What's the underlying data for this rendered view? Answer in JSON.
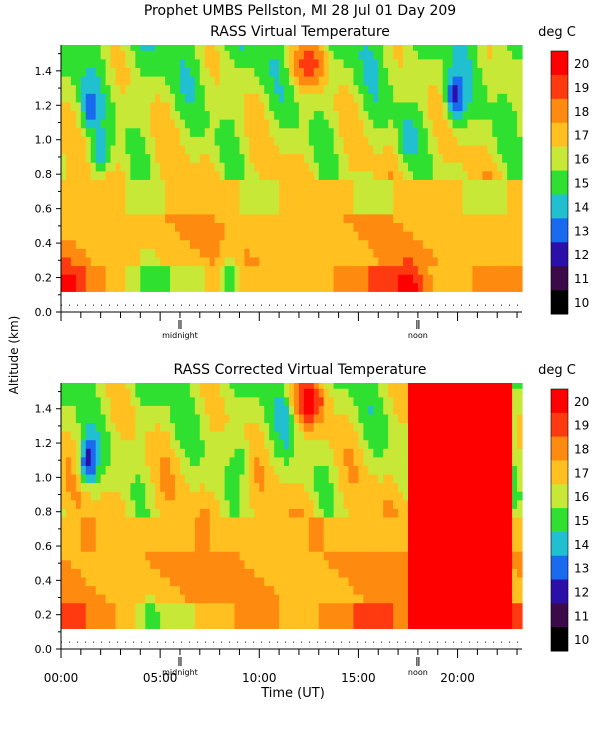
{
  "header": {
    "title": "Prophet  UMBS Pellston, MI  28 Jul 01 Day 209"
  },
  "ylabel": "Altitude (km)",
  "xlabel": "Time (UT)",
  "colorbar_unit": "deg C",
  "colors": {
    "10": "#000000",
    "11": "#3c0a48",
    "12": "#2a10a8",
    "13": "#1a6af0",
    "14": "#20c0d0",
    "15": "#30e030",
    "16": "#c8e838",
    "17": "#ffc020",
    "18": "#ff8a10",
    "19": "#ff3a10",
    "20": "#ff0000"
  },
  "chart_data": [
    {
      "type": "heatmap",
      "title": "RASS Virtual Temperature",
      "xlabel": "",
      "ylabel": "Altitude (km)",
      "x_ticks": [],
      "y_ticks": [
        "0.0",
        "0.2",
        "0.4",
        "0.6",
        "0.8",
        "1.0",
        "1.2",
        "1.4"
      ],
      "ylim": [
        0.0,
        1.55
      ],
      "xlim_hours": [
        0,
        23.25
      ],
      "markers": [
        {
          "hour": 6,
          "label": "midnight"
        },
        {
          "hour": 18,
          "label": "noon"
        }
      ],
      "colorbar": {
        "unit": "deg C",
        "levels": [
          10,
          11,
          12,
          13,
          14,
          15,
          16,
          17,
          18,
          19,
          20
        ]
      },
      "data_altitude_range_km": [
        0.12,
        1.55
      ],
      "cool_features": [
        {
          "hour": 1.5,
          "alt_km": 1.2,
          "value": 13
        },
        {
          "hour": 19.9,
          "alt_km": 1.25,
          "value": 12
        },
        {
          "hour": 17.5,
          "alt_km": 1.0,
          "value": 14
        },
        {
          "hour": 2.0,
          "alt_km": 0.95,
          "value": 14
        },
        {
          "hour": 4.5,
          "alt_km": 0.2,
          "value": 15
        },
        {
          "hour": 8.5,
          "alt_km": 0.2,
          "value": 15
        }
      ],
      "warm_features": [
        {
          "hour": 0.3,
          "alt_km": 0.15,
          "value": 20
        },
        {
          "hour": 17.5,
          "alt_km": 0.15,
          "value": 20
        },
        {
          "hour": 12.5,
          "alt_km": 1.45,
          "value": 19
        }
      ]
    },
    {
      "type": "heatmap",
      "title": "RASS Corrected Virtual Temperature",
      "xlabel": "Time (UT)",
      "ylabel": "Altitude (km)",
      "x_ticks": [
        "00:00",
        "05:00",
        "10:00",
        "15:00",
        "20:00"
      ],
      "y_ticks": [
        "0.0",
        "0.2",
        "0.4",
        "0.6",
        "0.8",
        "1.0",
        "1.2",
        "1.4"
      ],
      "ylim": [
        0.0,
        1.55
      ],
      "xlim_hours": [
        0,
        23.25
      ],
      "markers": [
        {
          "hour": 6,
          "label": "midnight"
        },
        {
          "hour": 18,
          "label": "noon"
        }
      ],
      "colorbar": {
        "unit": "deg C",
        "levels": [
          10,
          11,
          12,
          13,
          14,
          15,
          16,
          17,
          18,
          19,
          20
        ]
      },
      "data_altitude_range_km": [
        0.12,
        1.55
      ],
      "cool_features": [
        {
          "hour": 1.4,
          "alt_km": 1.1,
          "value": 12
        },
        {
          "hour": 11.3,
          "alt_km": 1.35,
          "value": 13
        },
        {
          "hour": 4.5,
          "alt_km": 0.15,
          "value": 15
        },
        {
          "hour": 9.0,
          "alt_km": 1.1,
          "value": 15
        }
      ],
      "warm_features": [
        {
          "hour": 19.5,
          "alt_km": 0.8,
          "value": 20
        },
        {
          "hour": 12.5,
          "alt_km": 1.45,
          "value": 20
        },
        {
          "hour": 0.3,
          "alt_km": 0.15,
          "value": 19
        }
      ]
    }
  ]
}
